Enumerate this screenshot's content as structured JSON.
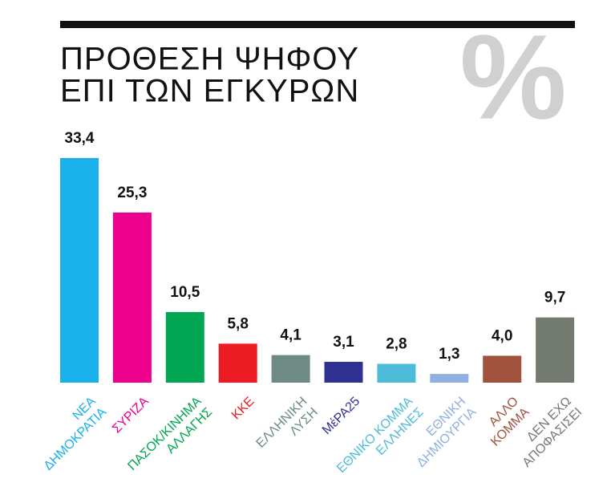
{
  "chart_data": {
    "type": "bar",
    "title": [
      "ΠΡΟΘΕΣΗ ΨΗΦΟΥ",
      "ΕΠΙ ΤΩΝ ΕΓΚΥΡΩΝ"
    ],
    "symbol": "%",
    "categories": [
      [
        "ΝΕΑ",
        "ΔΗΜΟΚΡΑΤΙΑ"
      ],
      [
        "ΣΥΡΙΖΑ"
      ],
      [
        "ΠΑΣΟΚ/ΚΙΝΗΜΑ",
        "ΑΛΛΑΓΗΣ"
      ],
      [
        "ΚΚΕ"
      ],
      [
        "ΕΛΛΗΝΙΚΗ",
        "ΛΥΣΗ"
      ],
      [
        "ΜέΡΑ25"
      ],
      [
        "ΕΘΝΙΚΟ ΚΟΜΜΑ",
        "ΕΛΛΗΝΕΣ"
      ],
      [
        "ΕΘΝΙΚΗ",
        "ΔΗΜΙΟΥΡΓΙΑ"
      ],
      [
        "ΑΛΛΟ",
        "ΚΟΜΜΑ"
      ],
      [
        "ΔΕΝ ΕΧΩ",
        "ΑΠΟΦΑΣΙΣΕΙ"
      ]
    ],
    "values": [
      33.4,
      25.3,
      10.5,
      5.8,
      4.1,
      3.1,
      2.8,
      1.3,
      4.0,
      9.7
    ],
    "value_labels": [
      "33,4",
      "25,3",
      "10,5",
      "5,8",
      "4,1",
      "3,1",
      "2,8",
      "1,3",
      "4,0",
      "9,7"
    ],
    "colors": [
      "#1ab0ec",
      "#ec008c",
      "#00a651",
      "#ed1c24",
      "#6d8a84",
      "#2e3192",
      "#4dbcd8",
      "#8fb0e0",
      "#a0523d",
      "#737a70"
    ]
  }
}
